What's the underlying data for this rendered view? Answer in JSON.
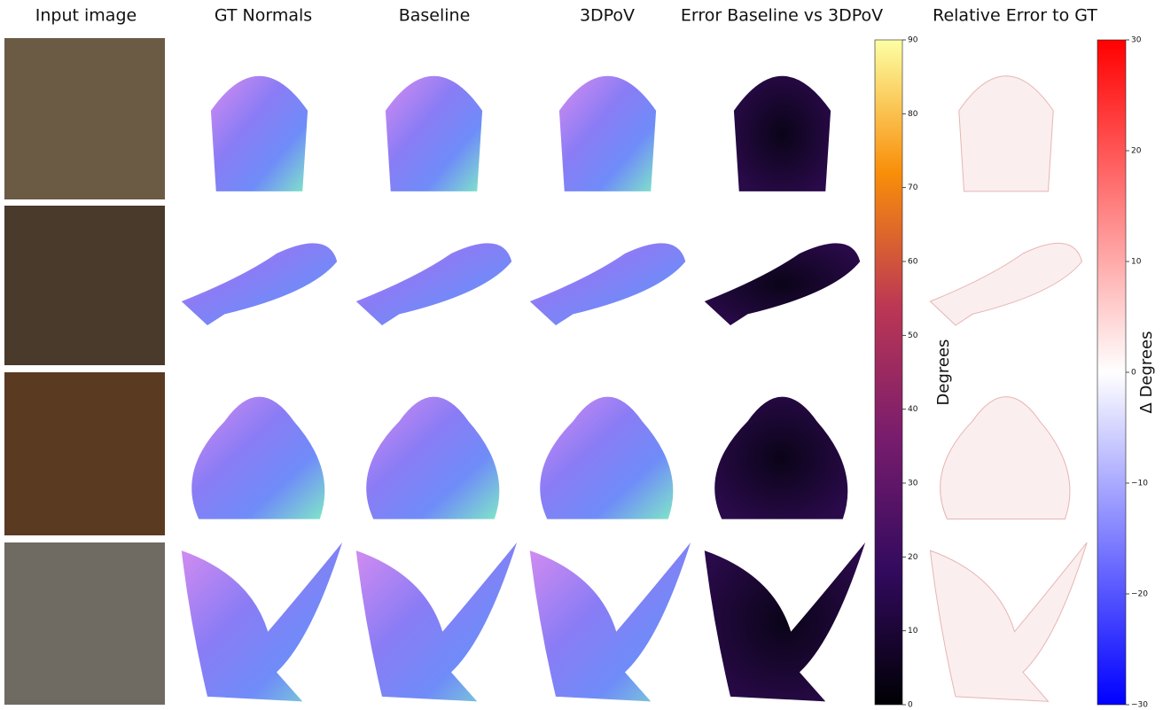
{
  "header": {
    "columns": [
      "Input image",
      "GT Normals",
      "Baseline",
      "3DPoV",
      "Error Baseline vs 3DPoV",
      "Relative Error to GT"
    ]
  },
  "colorbars": [
    {
      "label": "Degrees",
      "lim": [
        0,
        90
      ],
      "ticks": [
        0,
        10,
        20,
        30,
        40,
        50,
        60,
        70,
        80,
        90
      ]
    },
    {
      "label": "Δ Degrees",
      "lim": [
        -30,
        30
      ],
      "ticks": [
        {
          "value": -30,
          "label": "−30"
        },
        {
          "value": -20,
          "label": "−20"
        },
        {
          "value": -10,
          "label": "−10"
        },
        0,
        10,
        20,
        30
      ]
    }
  ]
}
